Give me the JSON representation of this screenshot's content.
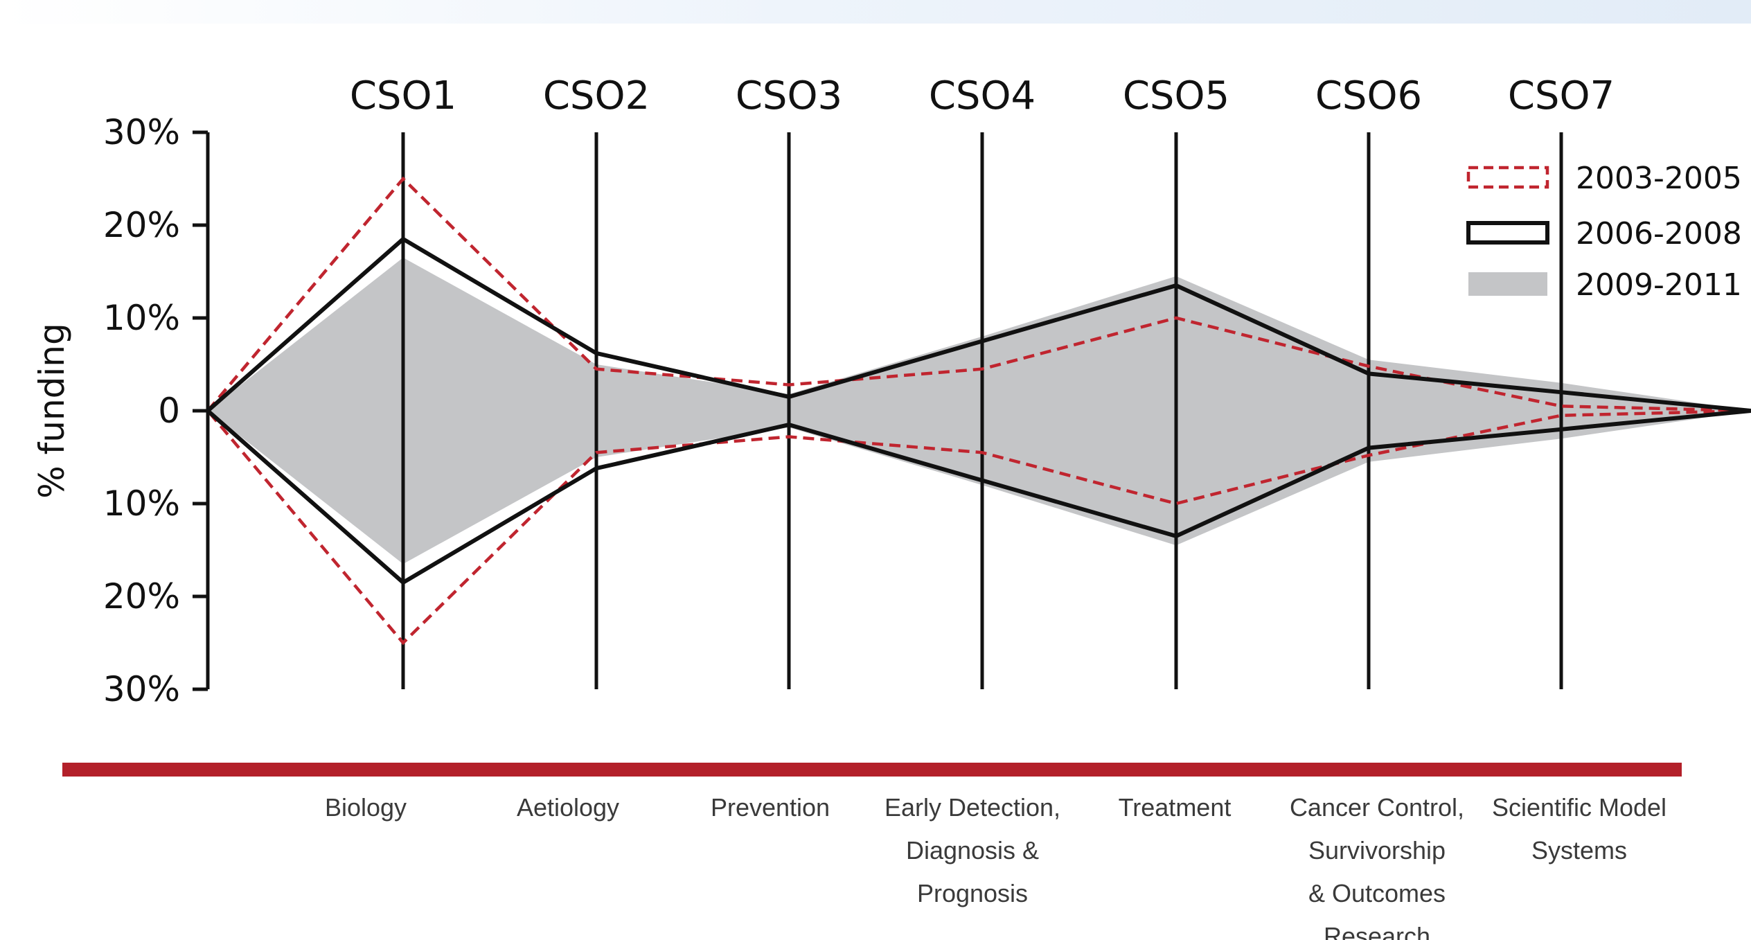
{
  "chart_data": {
    "type": "area",
    "ylabel": "% funding",
    "yticks": [
      "30%",
      "20%",
      "10%",
      "0",
      "10%",
      "20%",
      "30%"
    ],
    "ylim": [
      -30,
      30
    ],
    "columns": [
      "CSO1",
      "CSO2",
      "CSO3",
      "CSO4",
      "CSO5",
      "CSO6",
      "CSO7"
    ],
    "categories": [
      [
        "Biology"
      ],
      [
        "Aetiology"
      ],
      [
        "Prevention"
      ],
      [
        "Early Detection,",
        "Diagnosis &",
        "Prognosis"
      ],
      [
        "Treatment"
      ],
      [
        "Cancer Control,",
        "Survivorship",
        "& Outcomes",
        "Research"
      ],
      [
        "Scientific Model",
        "Systems"
      ]
    ],
    "series": [
      {
        "name": "2003-2005",
        "style": "dashed",
        "color": "#c0252f",
        "values": [
          25,
          4.5,
          2.8,
          4.5,
          10,
          4.8,
          0.5
        ]
      },
      {
        "name": "2006-2008",
        "style": "solid",
        "color": "#111111",
        "values": [
          18.5,
          6.2,
          1.5,
          7.5,
          13.5,
          4.0,
          2.0
        ]
      },
      {
        "name": "2009-2011",
        "style": "filled",
        "color": "#c4c5c7",
        "values": [
          16.5,
          5.0,
          1.8,
          8.0,
          14.5,
          5.5,
          3.0
        ]
      }
    ],
    "legend_position": "top-right",
    "band_color": "#b3202a"
  }
}
